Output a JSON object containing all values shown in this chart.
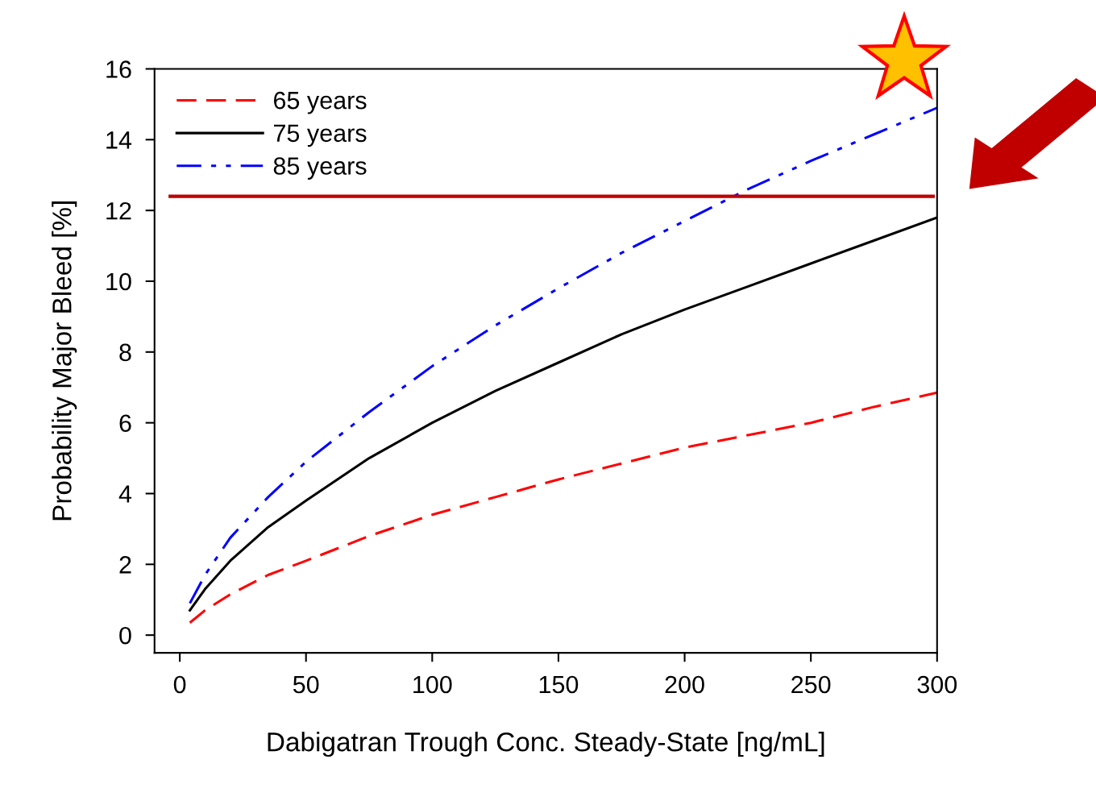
{
  "chart_data": {
    "type": "line",
    "xlabel": "Dabigatran Trough Conc. Steady-State [ng/mL]",
    "ylabel": "Probability Major Bleed [%]",
    "x": [
      4,
      10,
      20,
      35,
      50,
      75,
      100,
      125,
      150,
      175,
      200,
      225,
      250,
      275,
      300
    ],
    "series": [
      {
        "name": "65 years",
        "color": "#ff0000",
        "line_style": "dashed",
        "values": [
          0.35,
          0.7,
          1.15,
          1.7,
          2.1,
          2.8,
          3.4,
          3.9,
          4.4,
          4.85,
          5.3,
          5.65,
          6.0,
          6.45,
          6.85
        ]
      },
      {
        "name": "75 years",
        "color": "#000000",
        "line_style": "solid",
        "values": [
          0.7,
          1.3,
          2.1,
          3.05,
          3.8,
          5.0,
          6.0,
          6.9,
          7.7,
          8.5,
          9.2,
          9.85,
          10.5,
          11.15,
          11.8
        ]
      },
      {
        "name": "85 years",
        "color": "#0000ff",
        "line_style": "dashdotdot",
        "values": [
          0.9,
          1.7,
          2.75,
          3.9,
          4.9,
          6.3,
          7.6,
          8.75,
          9.8,
          10.8,
          11.7,
          12.6,
          13.4,
          14.15,
          14.9
        ]
      }
    ],
    "xlim": [
      -10,
      300
    ],
    "ylim": [
      -0.5,
      16
    ],
    "xticks": [
      0,
      50,
      100,
      150,
      200,
      250,
      300
    ],
    "yticks": [
      0,
      2,
      4,
      6,
      8,
      10,
      12,
      14,
      16
    ],
    "ref_lines": [
      {
        "axis": "y",
        "value": 12.4,
        "color": "#c00000",
        "line_style": "solid"
      }
    ],
    "legend": "top left",
    "grid": false
  }
}
